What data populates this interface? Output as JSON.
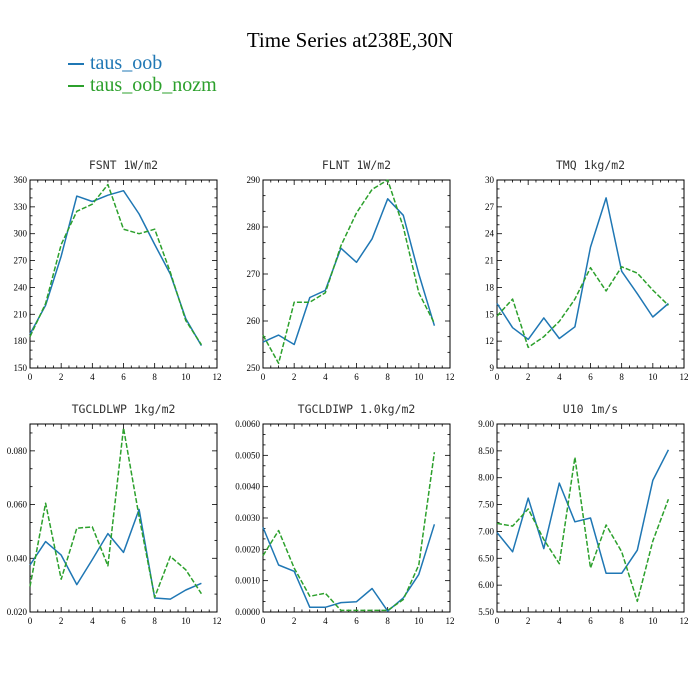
{
  "title": "Time Series at238E,30N",
  "legend": [
    {
      "name": "taus_oob",
      "color": "#1f77b4"
    },
    {
      "name": "taus_oob_nozm",
      "color": "#2ca02c"
    }
  ],
  "chart_data": [
    {
      "type": "line",
      "title": "FSNT   1W/m2",
      "xlim": [
        0,
        12
      ],
      "ylim": [
        150,
        360
      ],
      "xticks": [
        0,
        2,
        4,
        6,
        8,
        10,
        12
      ],
      "yticks": [
        150,
        180,
        210,
        240,
        270,
        300,
        330,
        360
      ],
      "ytick_labels": [
        "150",
        "180",
        "210",
        "240",
        "270",
        "300",
        "330",
        "360"
      ],
      "x": [
        0,
        1,
        2,
        3,
        4,
        5,
        6,
        7,
        8,
        9,
        10,
        11
      ],
      "series": [
        {
          "name": "taus_oob",
          "values": [
            188,
            220,
            275,
            342,
            336,
            343,
            348,
            322,
            288,
            255,
            205,
            175
          ]
        },
        {
          "name": "taus_oob_nozm",
          "values": [
            185,
            222,
            288,
            325,
            333,
            355,
            305,
            300,
            305,
            257,
            203,
            176
          ]
        }
      ]
    },
    {
      "type": "line",
      "title": "FLNT   1W/m2",
      "xlim": [
        0,
        12
      ],
      "ylim": [
        250,
        290
      ],
      "xticks": [
        0,
        2,
        4,
        6,
        8,
        10,
        12
      ],
      "yticks": [
        250,
        260,
        270,
        280,
        290
      ],
      "ytick_labels": [
        "250",
        "260",
        "270",
        "280",
        "290"
      ],
      "x": [
        0,
        1,
        2,
        3,
        4,
        5,
        6,
        7,
        8,
        9,
        10,
        11
      ],
      "series": [
        {
          "name": "taus_oob",
          "values": [
            255.5,
            257,
            255,
            265,
            266.5,
            275.5,
            272.5,
            277.5,
            286,
            282.5,
            270,
            259
          ]
        },
        {
          "name": "taus_oob_nozm",
          "values": [
            257,
            251,
            264,
            264,
            266,
            276,
            283,
            288,
            290,
            280,
            266,
            259.5
          ]
        }
      ]
    },
    {
      "type": "line",
      "title": "TMQ   1kg/m2",
      "xlim": [
        0,
        12
      ],
      "ylim": [
        9,
        30
      ],
      "xticks": [
        0,
        2,
        4,
        6,
        8,
        10,
        12
      ],
      "yticks": [
        9,
        12,
        15,
        18,
        21,
        24,
        27,
        30
      ],
      "ytick_labels": [
        "9",
        "12",
        "15",
        "18",
        "21",
        "24",
        "27",
        "30"
      ],
      "x": [
        0,
        1,
        2,
        3,
        4,
        5,
        6,
        7,
        8,
        9,
        10,
        11
      ],
      "series": [
        {
          "name": "taus_oob",
          "values": [
            16.2,
            13.5,
            12.2,
            14.6,
            12.3,
            13.6,
            22.5,
            28,
            19.8,
            17.3,
            14.7,
            16.2
          ]
        },
        {
          "name": "taus_oob_nozm",
          "values": [
            14.8,
            16.7,
            11.3,
            12.5,
            14.2,
            16.7,
            20.2,
            17.6,
            20.3,
            19.6,
            17.7,
            16
          ]
        }
      ]
    },
    {
      "type": "line",
      "title": "TGCLDLWP   1kg/m2",
      "xlim": [
        0,
        12
      ],
      "ylim": [
        0.02,
        0.09
      ],
      "xticks": [
        0,
        2,
        4,
        6,
        8,
        10,
        12
      ],
      "yticks": [
        0.02,
        0.04,
        0.06,
        0.08
      ],
      "ytick_labels": [
        "0.020",
        "0.040",
        "0.060",
        "0.080"
      ],
      "x": [
        0,
        1,
        2,
        3,
        4,
        5,
        6,
        7,
        8,
        9,
        10,
        11
      ],
      "series": [
        {
          "name": "taus_oob",
          "values": [
            0.0375,
            0.0462,
            0.0412,
            0.0302,
            0.0395,
            0.0492,
            0.0422,
            0.0582,
            0.0252,
            0.0248,
            0.0282,
            0.0307
          ]
        },
        {
          "name": "taus_oob_nozm",
          "values": [
            0.0295,
            0.0605,
            0.0322,
            0.0512,
            0.0517,
            0.0372,
            0.0885,
            0.0555,
            0.0255,
            0.0407,
            0.0357,
            0.0268
          ]
        }
      ]
    },
    {
      "type": "line",
      "title": "TGCLDIWP   1.0kg/m2",
      "xlim": [
        0,
        12
      ],
      "ylim": [
        0,
        0.006
      ],
      "xticks": [
        0,
        2,
        4,
        6,
        8,
        10,
        12
      ],
      "yticks": [
        0,
        0.001,
        0.002,
        0.003,
        0.004,
        0.005,
        0.006
      ],
      "ytick_labels": [
        "0.0000",
        "0.0010",
        "0.0020",
        "0.0030",
        "0.0040",
        "0.0050",
        "0.0060"
      ],
      "x": [
        0,
        1,
        2,
        3,
        4,
        5,
        6,
        7,
        8,
        9,
        10,
        11
      ],
      "series": [
        {
          "name": "taus_oob",
          "values": [
            0.0027,
            0.0015,
            0.0013,
            0.00015,
            0.00015,
            0.0003,
            0.00033,
            0.00075,
            3e-05,
            0.00045,
            0.0012,
            0.0028
          ]
        },
        {
          "name": "taus_oob_nozm",
          "values": [
            0.0018,
            0.0026,
            0.0014,
            0.0005,
            0.0006,
            5e-05,
            5e-05,
            5e-05,
            5e-05,
            0.0004,
            0.0015,
            0.0051
          ]
        }
      ]
    },
    {
      "type": "line",
      "title": "U10   1m/s",
      "xlim": [
        0,
        12
      ],
      "ylim": [
        5.5,
        9
      ],
      "xticks": [
        0,
        2,
        4,
        6,
        8,
        10,
        12
      ],
      "yticks": [
        5.5,
        6,
        6.5,
        7,
        7.5,
        8,
        8.5,
        9
      ],
      "ytick_labels": [
        "5.50",
        "6.00",
        "6.50",
        "7.00",
        "7.50",
        "8.00",
        "8.50",
        "9.00"
      ],
      "x": [
        0,
        1,
        2,
        3,
        4,
        5,
        6,
        7,
        8,
        9,
        10,
        11
      ],
      "series": [
        {
          "name": "taus_oob",
          "values": [
            6.98,
            6.62,
            7.62,
            6.68,
            7.9,
            7.18,
            7.25,
            6.22,
            6.22,
            6.65,
            7.95,
            8.52
          ]
        },
        {
          "name": "taus_oob_nozm",
          "values": [
            7.15,
            7.1,
            7.42,
            6.85,
            6.4,
            8.38,
            6.32,
            7.12,
            6.62,
            5.7,
            6.82,
            7.6
          ]
        }
      ]
    }
  ]
}
